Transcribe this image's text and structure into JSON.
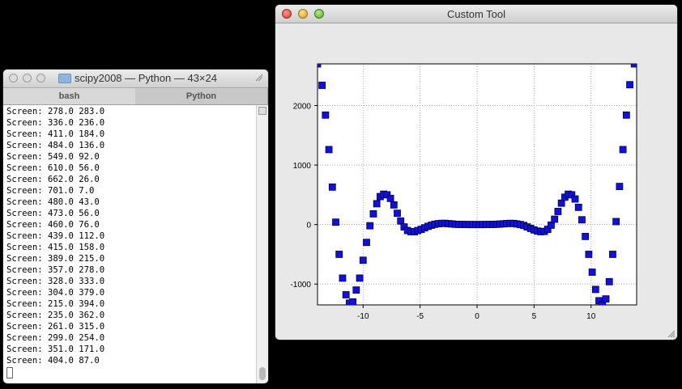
{
  "terminal": {
    "title": "scipy2008 — Python — 43×24",
    "tabs": [
      "bash",
      "Python"
    ],
    "active_tab": "Python",
    "lines": [
      "Screen: 278.0 283.0",
      "Screen: 336.0 236.0",
      "Screen: 411.0 184.0",
      "Screen: 484.0 136.0",
      "Screen: 549.0 92.0",
      "Screen: 610.0 56.0",
      "Screen: 662.0 26.0",
      "Screen: 701.0 7.0",
      "Screen: 480.0 43.0",
      "Screen: 473.0 56.0",
      "Screen: 460.0 76.0",
      "Screen: 439.0 112.0",
      "Screen: 415.0 158.0",
      "Screen: 389.0 215.0",
      "Screen: 357.0 278.0",
      "Screen: 328.0 333.0",
      "Screen: 304.0 379.0",
      "Screen: 215.0 394.0",
      "Screen: 235.0 362.0",
      "Screen: 261.0 315.0",
      "Screen: 299.0 254.0",
      "Screen: 351.0 171.0",
      "Screen: 404.0 87.0"
    ]
  },
  "tool": {
    "title": "Custom Tool"
  },
  "colors": {
    "marker_fill": "#1111dd",
    "marker_stroke": "#000044",
    "grid": "#aaaaaa"
  },
  "chart_data": {
    "type": "scatter",
    "title": "",
    "xlabel": "",
    "ylabel": "",
    "xlim": [
      -14,
      14
    ],
    "ylim": [
      -1350,
      2700
    ],
    "xticks": [
      -10,
      -5,
      0,
      5,
      10
    ],
    "yticks": [
      -1000,
      0,
      1000,
      2000
    ],
    "grid": true,
    "marker": "square",
    "points": [
      [
        -14.0,
        2700
      ],
      [
        -13.6,
        2340
      ],
      [
        -13.3,
        1840
      ],
      [
        -13.0,
        1260
      ],
      [
        -12.7,
        630
      ],
      [
        -12.4,
        40
      ],
      [
        -12.1,
        -500
      ],
      [
        -11.8,
        -900
      ],
      [
        -11.5,
        -1180
      ],
      [
        -11.2,
        -1320
      ],
      [
        -10.9,
        -1300
      ],
      [
        -10.6,
        -1100
      ],
      [
        -10.3,
        -900
      ],
      [
        -10.0,
        -600
      ],
      [
        -9.7,
        -300
      ],
      [
        -9.4,
        -20
      ],
      [
        -9.1,
        180
      ],
      [
        -8.8,
        350
      ],
      [
        -8.5,
        470
      ],
      [
        -8.2,
        510
      ],
      [
        -7.9,
        500
      ],
      [
        -7.6,
        440
      ],
      [
        -7.3,
        330
      ],
      [
        -7.0,
        190
      ],
      [
        -6.7,
        60
      ],
      [
        -6.4,
        -40
      ],
      [
        -6.1,
        -100
      ],
      [
        -5.8,
        -120
      ],
      [
        -5.5,
        -120
      ],
      [
        -5.2,
        -100
      ],
      [
        -4.9,
        -80
      ],
      [
        -4.6,
        -55
      ],
      [
        -4.3,
        -30
      ],
      [
        -4.0,
        -10
      ],
      [
        -3.7,
        5
      ],
      [
        -3.4,
        15
      ],
      [
        -3.1,
        20
      ],
      [
        -2.8,
        20
      ],
      [
        -2.5,
        15
      ],
      [
        -2.2,
        10
      ],
      [
        -1.9,
        5
      ],
      [
        -1.6,
        3
      ],
      [
        -1.3,
        2
      ],
      [
        -1.0,
        1
      ],
      [
        -0.7,
        0
      ],
      [
        -0.4,
        0
      ],
      [
        -0.1,
        0
      ],
      [
        0.2,
        0
      ],
      [
        0.5,
        0
      ],
      [
        0.8,
        1
      ],
      [
        1.1,
        2
      ],
      [
        1.4,
        3
      ],
      [
        1.7,
        5
      ],
      [
        2.0,
        8
      ],
      [
        2.3,
        12
      ],
      [
        2.6,
        17
      ],
      [
        2.9,
        20
      ],
      [
        3.2,
        18
      ],
      [
        3.5,
        10
      ],
      [
        3.8,
        0
      ],
      [
        4.1,
        -15
      ],
      [
        4.4,
        -40
      ],
      [
        4.7,
        -65
      ],
      [
        5.0,
        -90
      ],
      [
        5.3,
        -110
      ],
      [
        5.6,
        -120
      ],
      [
        5.9,
        -115
      ],
      [
        6.2,
        -80
      ],
      [
        6.5,
        -10
      ],
      [
        6.8,
        90
      ],
      [
        7.1,
        220
      ],
      [
        7.4,
        360
      ],
      [
        7.7,
        460
      ],
      [
        8.0,
        510
      ],
      [
        8.3,
        500
      ],
      [
        8.6,
        430
      ],
      [
        8.9,
        290
      ],
      [
        9.2,
        80
      ],
      [
        9.5,
        -200
      ],
      [
        9.8,
        -500
      ],
      [
        10.1,
        -800
      ],
      [
        10.4,
        -1090
      ],
      [
        10.7,
        -1280
      ],
      [
        11.0,
        -1340
      ],
      [
        11.3,
        -1250
      ],
      [
        11.6,
        -960
      ],
      [
        11.9,
        -500
      ],
      [
        12.2,
        50
      ],
      [
        12.5,
        640
      ],
      [
        12.8,
        1260
      ],
      [
        13.1,
        1840
      ],
      [
        13.4,
        2350
      ],
      [
        13.8,
        2700
      ]
    ]
  }
}
